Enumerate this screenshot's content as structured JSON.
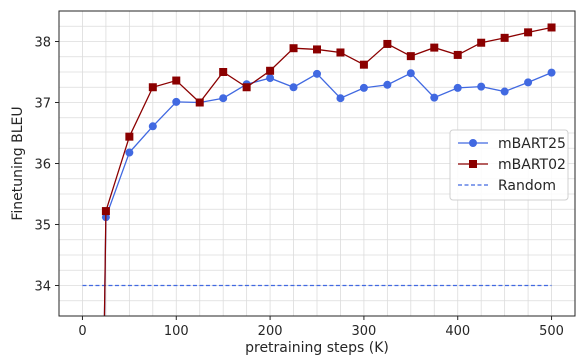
{
  "chart_data": {
    "type": "line",
    "xlabel": "pretraining steps (K)",
    "ylabel": "Finetuning BLEU",
    "xlim": [
      -25,
      525
    ],
    "ylim": [
      33.5,
      38.5
    ],
    "xticks": [
      0,
      100,
      200,
      300,
      400,
      500
    ],
    "yticks": [
      34,
      35,
      36,
      37,
      38
    ],
    "grid": true,
    "legend_position": "right",
    "series": [
      {
        "name": "mBART25",
        "color": "#4169e1",
        "marker": "circle",
        "linestyle": "solid",
        "x": [
          25,
          50,
          75,
          100,
          125,
          150,
          175,
          200,
          225,
          250,
          275,
          300,
          325,
          350,
          375,
          400,
          425,
          450,
          475,
          500
        ],
        "y": [
          35.12,
          36.18,
          36.61,
          37.01,
          37.0,
          37.07,
          37.3,
          37.4,
          37.25,
          37.47,
          37.07,
          37.24,
          37.29,
          37.48,
          37.08,
          37.24,
          37.26,
          37.18,
          37.33,
          37.49
        ]
      },
      {
        "name": "mBART02",
        "color": "#8b0000",
        "marker": "square",
        "linestyle": "solid",
        "x": [
          25,
          50,
          75,
          100,
          125,
          150,
          175,
          200,
          225,
          250,
          275,
          300,
          325,
          350,
          375,
          400,
          425,
          450,
          475,
          500
        ],
        "y": [
          35.22,
          36.44,
          37.25,
          37.36,
          37.0,
          37.5,
          37.25,
          37.52,
          37.89,
          37.87,
          37.82,
          37.62,
          37.96,
          37.76,
          37.9,
          37.78,
          37.98,
          38.06,
          38.15,
          38.23
        ]
      },
      {
        "name": "Random",
        "color": "#4169e1",
        "marker": "none",
        "linestyle": "dashed",
        "x": [
          0,
          500
        ],
        "y": [
          34.0,
          34.0
        ]
      }
    ]
  }
}
